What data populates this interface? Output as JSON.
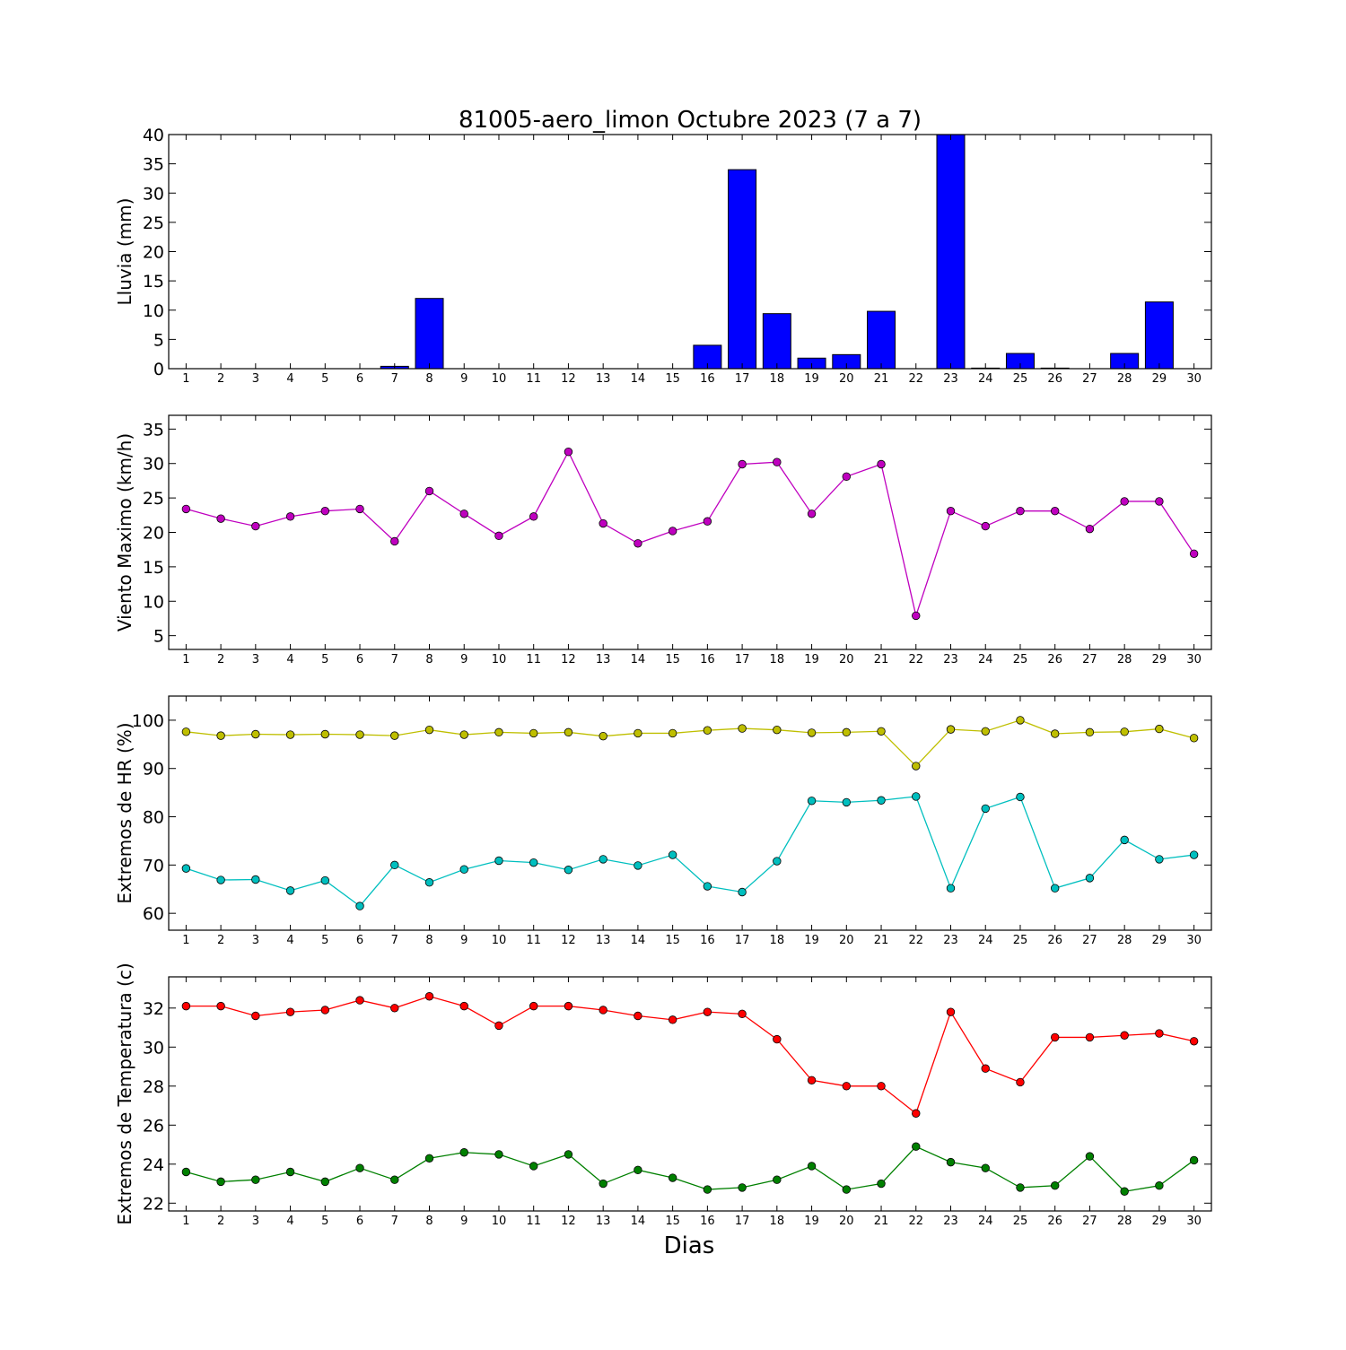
{
  "chart_data": [
    {
      "type": "bar",
      "title": "81005-aero_limon Octubre 2023  (7 a 7)",
      "ylabel": "Lluvia (mm)",
      "xlabel": "",
      "x": [
        1,
        2,
        3,
        4,
        5,
        6,
        7,
        8,
        9,
        10,
        11,
        12,
        13,
        14,
        15,
        16,
        17,
        18,
        19,
        20,
        21,
        22,
        23,
        24,
        25,
        26,
        27,
        28,
        29,
        30
      ],
      "xlim": [
        0.5,
        30.5
      ],
      "ylim": [
        0,
        40
      ],
      "yticks": [
        0,
        5,
        10,
        15,
        20,
        25,
        30,
        35,
        40
      ],
      "series": [
        {
          "color": "#0000ff",
          "values": [
            0,
            0,
            0,
            0,
            0,
            0,
            0.4,
            12,
            0,
            0,
            0,
            0,
            0,
            0,
            0,
            4,
            34,
            9.4,
            1.8,
            2.4,
            9.8,
            0,
            40,
            0.1,
            2.6,
            0.1,
            0,
            2.6,
            11.4,
            0
          ]
        }
      ]
    },
    {
      "type": "line",
      "ylabel": "Viento Maximo (km/h)",
      "x": [
        1,
        2,
        3,
        4,
        5,
        6,
        7,
        8,
        9,
        10,
        11,
        12,
        13,
        14,
        15,
        16,
        17,
        18,
        19,
        20,
        21,
        22,
        23,
        24,
        25,
        26,
        27,
        28,
        29,
        30
      ],
      "xlim": [
        0.5,
        30.5
      ],
      "ylim": [
        3,
        37
      ],
      "yticks": [
        5,
        10,
        15,
        20,
        25,
        30,
        35
      ],
      "series": [
        {
          "color": "#bf00bf",
          "values": [
            23.4,
            22,
            20.9,
            22.3,
            23.1,
            23.4,
            18.7,
            26,
            22.7,
            19.5,
            22.3,
            31.7,
            21.3,
            18.4,
            20.2,
            21.6,
            29.9,
            30.2,
            22.7,
            28.1,
            29.9,
            7.9,
            23.1,
            20.9,
            23.1,
            23.1,
            20.5,
            24.5,
            24.5,
            16.9
          ]
        }
      ]
    },
    {
      "type": "line",
      "ylabel": "Extremos de HR (%)",
      "x": [
        1,
        2,
        3,
        4,
        5,
        6,
        7,
        8,
        9,
        10,
        11,
        12,
        13,
        14,
        15,
        16,
        17,
        18,
        19,
        20,
        21,
        22,
        23,
        24,
        25,
        26,
        27,
        28,
        29,
        30
      ],
      "xlim": [
        0.5,
        30.5
      ],
      "ylim": [
        56.5,
        105
      ],
      "yticks": [
        60,
        70,
        80,
        90,
        100
      ],
      "series": [
        {
          "color": "#bfbf00",
          "values": [
            97.6,
            96.8,
            97.1,
            97,
            97.1,
            97,
            96.8,
            98,
            97,
            97.5,
            97.3,
            97.5,
            96.7,
            97.3,
            97.3,
            97.9,
            98.3,
            98,
            97.4,
            97.5,
            97.7,
            90.5,
            98.1,
            97.7,
            100,
            97.2,
            97.5,
            97.6,
            98.2,
            96.3
          ]
        },
        {
          "color": "#00bfbf",
          "values": [
            69.3,
            66.9,
            67,
            64.7,
            66.8,
            61.5,
            70,
            66.4,
            69.1,
            70.9,
            70.5,
            69,
            71.2,
            69.9,
            72.1,
            65.6,
            64.4,
            70.8,
            83.3,
            83,
            83.4,
            84.2,
            65.2,
            81.7,
            84.1,
            65.2,
            67.3,
            75.2,
            71.2,
            72.1
          ]
        }
      ]
    },
    {
      "type": "line",
      "ylabel": "Extremos de Temperatura (c)",
      "xlabel": "Dias",
      "x": [
        1,
        2,
        3,
        4,
        5,
        6,
        7,
        8,
        9,
        10,
        11,
        12,
        13,
        14,
        15,
        16,
        17,
        18,
        19,
        20,
        21,
        22,
        23,
        24,
        25,
        26,
        27,
        28,
        29,
        30
      ],
      "xlim": [
        0.5,
        30.5
      ],
      "ylim": [
        21.6,
        33.6
      ],
      "yticks": [
        22,
        24,
        26,
        28,
        30,
        32
      ],
      "series": [
        {
          "color": "#ff0000",
          "values": [
            32.1,
            32.1,
            31.6,
            31.8,
            31.9,
            32.4,
            32,
            32.6,
            32.1,
            31.1,
            32.1,
            32.1,
            31.9,
            31.6,
            31.4,
            31.8,
            31.7,
            30.4,
            28.3,
            28,
            28,
            26.6,
            31.8,
            28.9,
            28.2,
            30.5,
            30.5,
            30.6,
            30.7,
            30.3
          ]
        },
        {
          "color": "#008000",
          "values": [
            23.6,
            23.1,
            23.2,
            23.6,
            23.1,
            23.8,
            23.2,
            24.3,
            24.6,
            24.5,
            23.9,
            24.5,
            23,
            23.7,
            23.3,
            22.7,
            22.8,
            23.2,
            23.9,
            22.7,
            23,
            24.9,
            24.1,
            23.8,
            22.8,
            22.9,
            24.4,
            22.6,
            22.9,
            24.2
          ]
        }
      ]
    }
  ]
}
